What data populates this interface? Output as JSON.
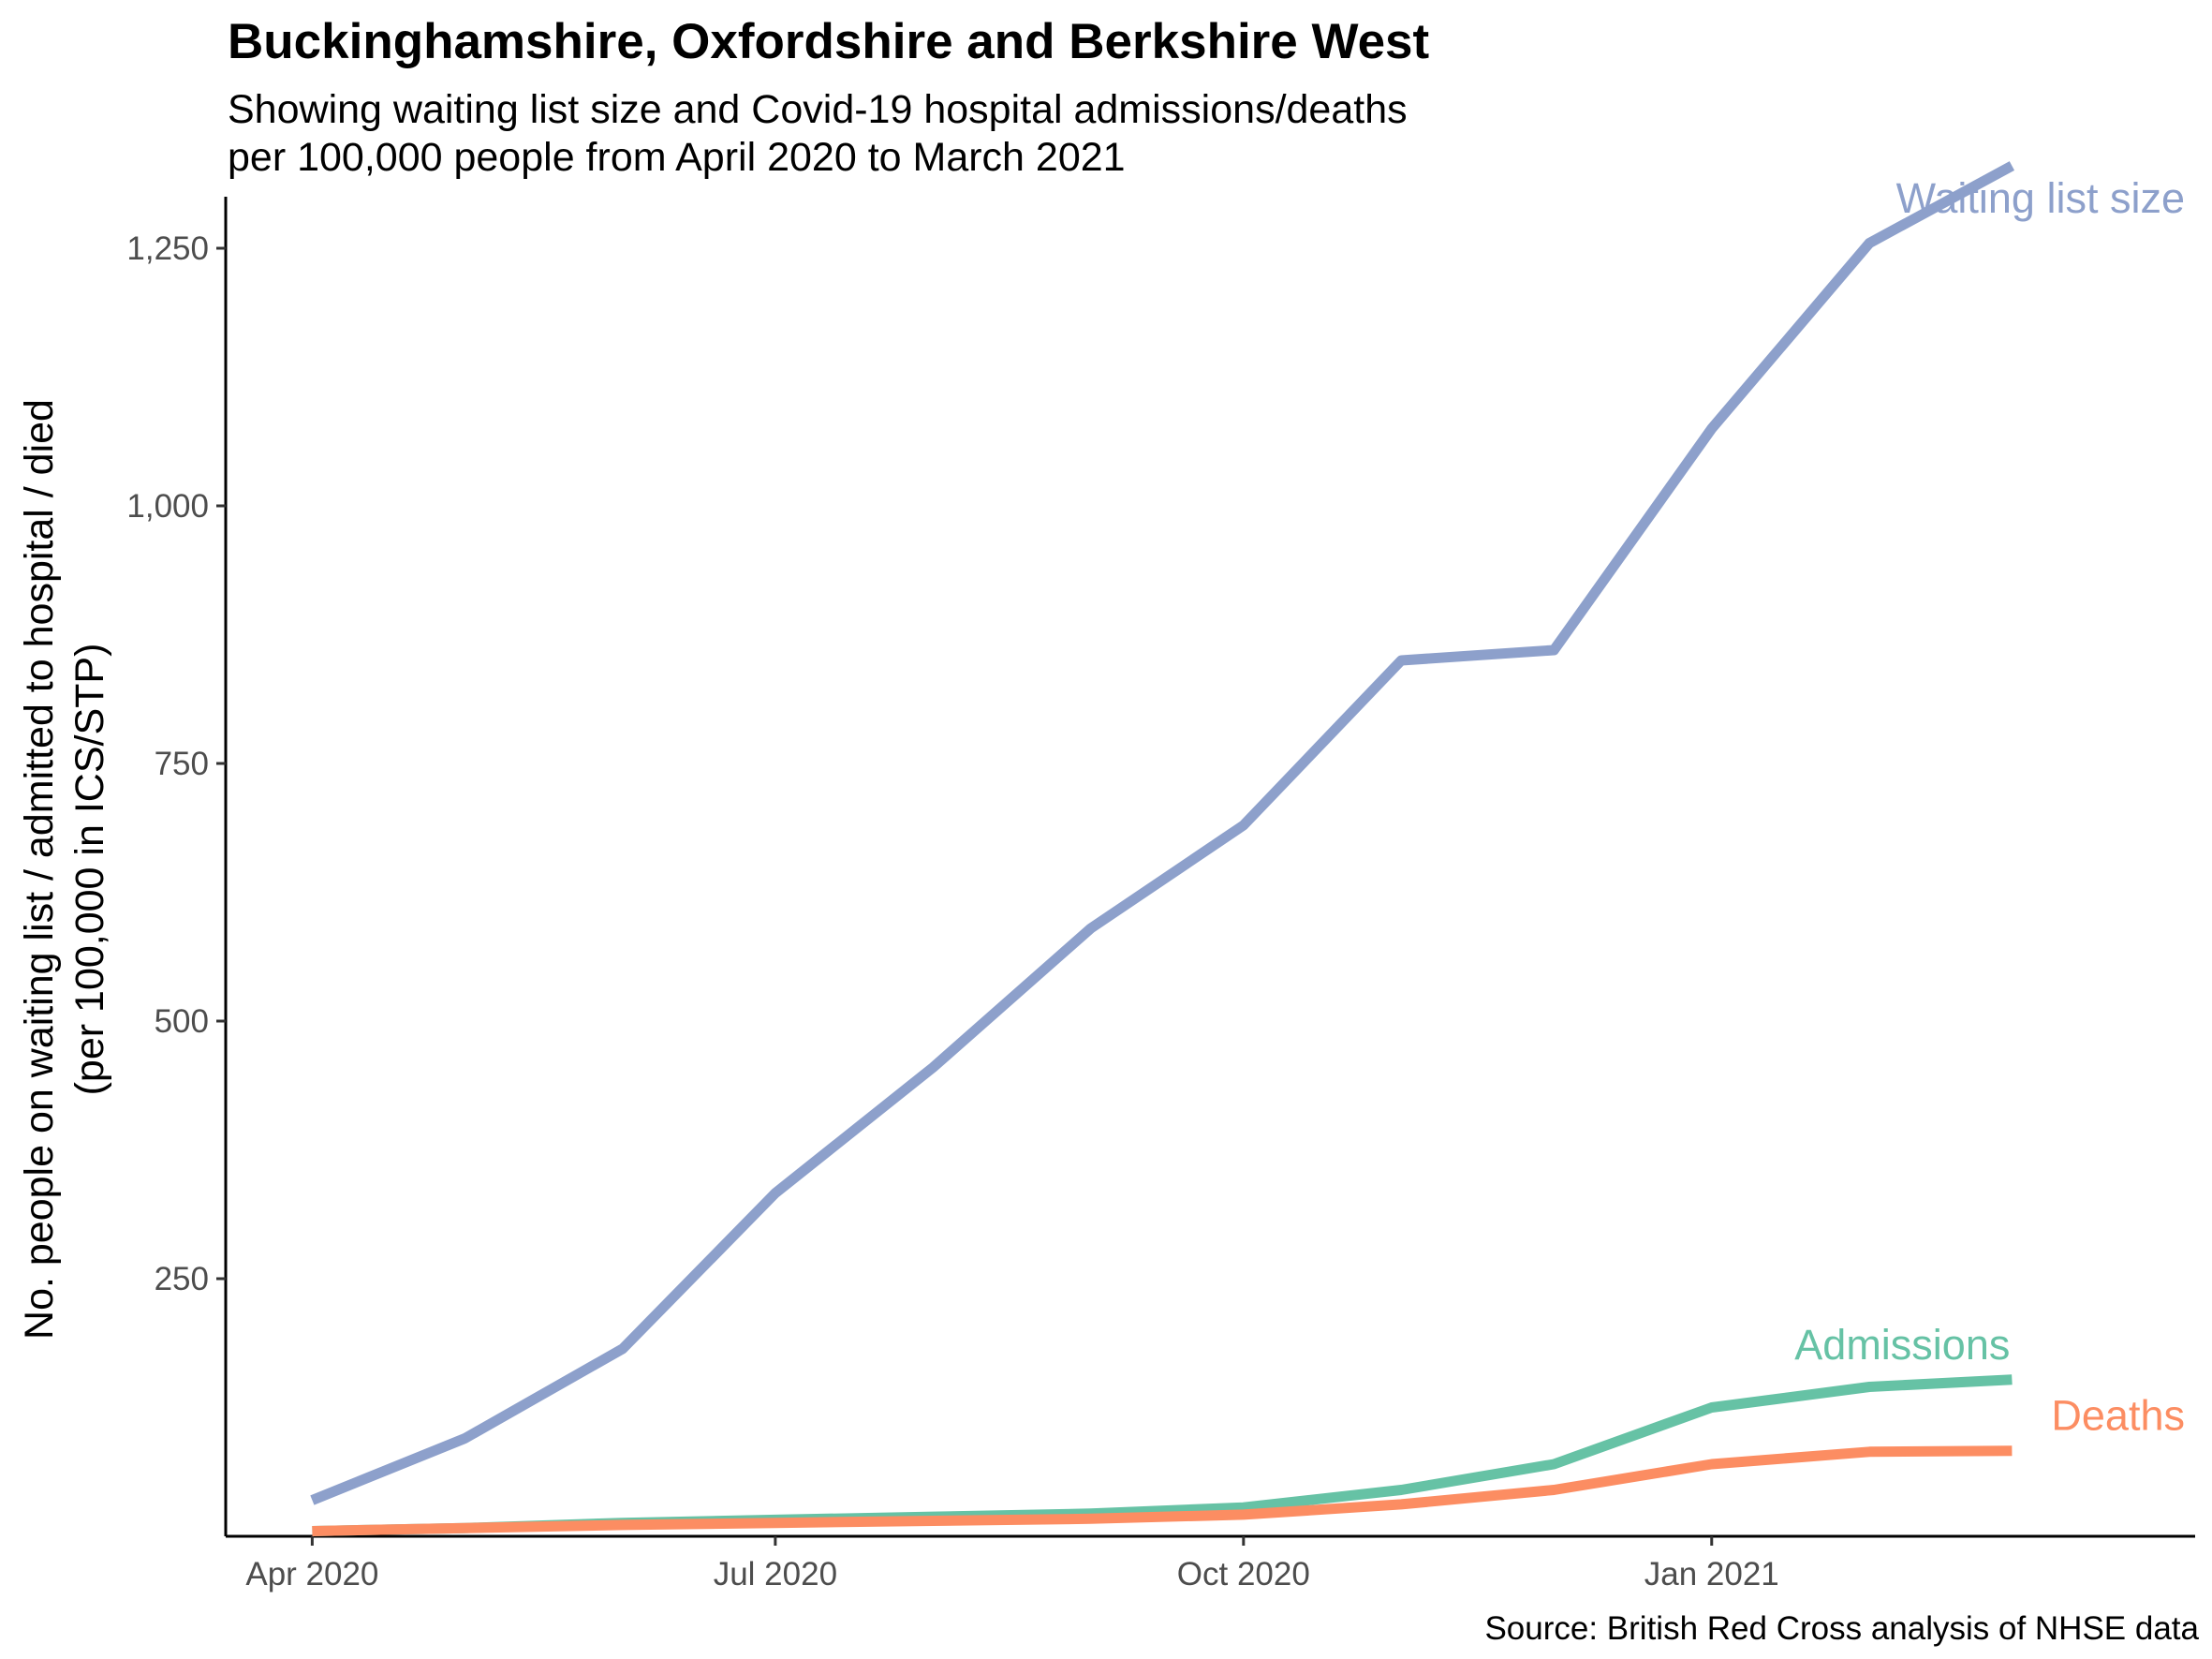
{
  "chart_data": {
    "type": "line",
    "title": "Buckinghamshire, Oxfordshire and Berkshire West",
    "subtitle_lines": [
      "Showing waiting list size and Covid-19 hospital admissions/deaths",
      "per 100,000 people from April 2020 to March 2021"
    ],
    "ylabel_lines": [
      "No. people on waiting list / admitted to hospital / died",
      "(per 100,000 in ICS/STP)"
    ],
    "xlabel": "",
    "caption": "Source: British Red Cross analysis of NHSE data",
    "x": [
      "2020-04-01",
      "2020-05-01",
      "2020-06-01",
      "2020-07-01",
      "2020-08-01",
      "2020-09-01",
      "2020-10-01",
      "2020-11-01",
      "2020-12-01",
      "2021-01-01",
      "2021-02-01",
      "2021-03-01"
    ],
    "x_ticks": [
      {
        "date": "2020-04-01",
        "label": "Apr 2020"
      },
      {
        "date": "2020-07-01",
        "label": "Jul 2020"
      },
      {
        "date": "2020-10-01",
        "label": "Oct 2020"
      },
      {
        "date": "2021-01-01",
        "label": "Jan 2021"
      }
    ],
    "y_ticks": [
      {
        "value": 250,
        "label": "250"
      },
      {
        "value": 500,
        "label": "500"
      },
      {
        "value": 750,
        "label": "750"
      },
      {
        "value": 1000,
        "label": "1,000"
      },
      {
        "value": 1250,
        "label": "1,250"
      }
    ],
    "xlim": [
      "2020-03-15",
      "2021-04-06"
    ],
    "ylim": [
      0,
      1300
    ],
    "grid": false,
    "legend": "direct labels at line ends",
    "series": [
      {
        "name": "Waiting list size",
        "color": "#8DA0CB",
        "values": [
          35,
          95,
          182,
          333,
          455,
          590,
          690,
          850,
          860,
          1075,
          1255,
          1330
        ]
      },
      {
        "name": "Admissions",
        "color": "#66C2A5",
        "values": [
          5,
          8,
          13,
          16,
          19,
          22,
          28,
          45,
          70,
          125,
          145,
          152
        ]
      },
      {
        "name": "Deaths",
        "color": "#FC8D62",
        "values": [
          5,
          8,
          11,
          13,
          15,
          17,
          21,
          31,
          45,
          70,
          82,
          83
        ]
      }
    ]
  }
}
